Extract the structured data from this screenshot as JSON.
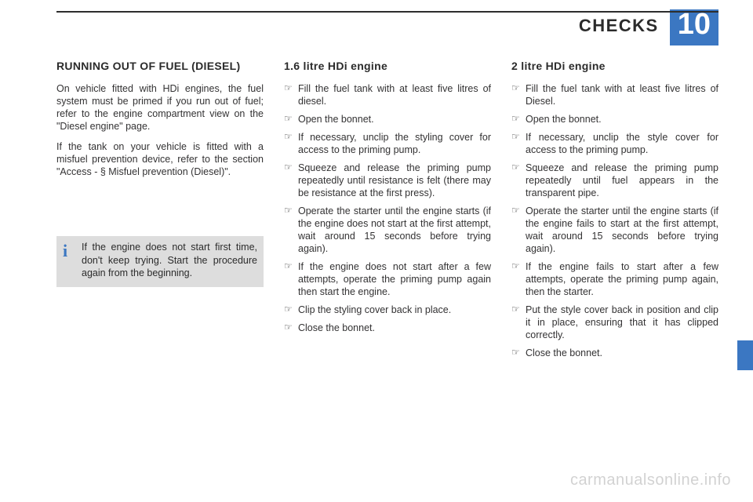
{
  "colors": {
    "accent": "#3b77c2",
    "text": "#2b2b2b",
    "infobox_bg": "#dddddd",
    "rule": "#2d2d2d",
    "background": "#ffffff",
    "watermark": "rgba(0,0,0,0.18)"
  },
  "typography": {
    "body_font": "Arial",
    "body_size_pt": 9,
    "heading_size_pt": 11,
    "header_title_size_pt": 17,
    "chapnum_size_pt": 30
  },
  "header": {
    "title": "CHECKS",
    "chapter_number": "10"
  },
  "col1": {
    "heading": "RUNNING OUT OF FUEL (DIESEL)",
    "para1": "On vehicle fitted with HDi engines, the fuel system must be primed if you run out of fuel; refer to the engine compartment view on the \"Diesel engine\" page.",
    "para2": "If the tank on your vehicle is fitted with a misfuel prevention device, refer to the section \"Access - § Misfuel prevention (Diesel)\".",
    "infobox": {
      "icon": "i",
      "text": "If the engine does not start first time, don't keep trying. Start the procedure again from the beginning."
    }
  },
  "col2": {
    "heading": "1.6 litre HDi engine",
    "items": [
      "Fill the fuel tank with at least five litres of diesel.",
      "Open the bonnet.",
      "If necessary, unclip the styling cover for access to the priming pump.",
      "Squeeze and release the priming pump repeatedly until resistance is felt (there may be resistance at the first press).",
      "Operate the starter until the engine starts (if the engine does not start at the first attempt, wait around 15 seconds before trying again).",
      "If the engine does not start after a few attempts, operate the priming pump again then start the engine.",
      "Clip the styling cover back in place.",
      "Close the bonnet."
    ]
  },
  "col3": {
    "heading": "2 litre HDi engine",
    "items": [
      "Fill the fuel tank with at least five litres of Diesel.",
      "Open the bonnet.",
      "If necessary, unclip the style cover for access to the priming pump.",
      "Squeeze and release the priming pump repeatedly until fuel appears in the transparent pipe.",
      "Operate the starter until the engine starts (if the engine fails to start at the first attempt, wait around 15 seconds before trying again).",
      "If the engine fails to start after a few attempts, operate the priming pump again, then the starter.",
      "Put the style cover back in position and clip it in place, ensuring that it has clipped correctly.",
      "Close the bonnet."
    ]
  },
  "watermark": "carmanualsonline.info"
}
